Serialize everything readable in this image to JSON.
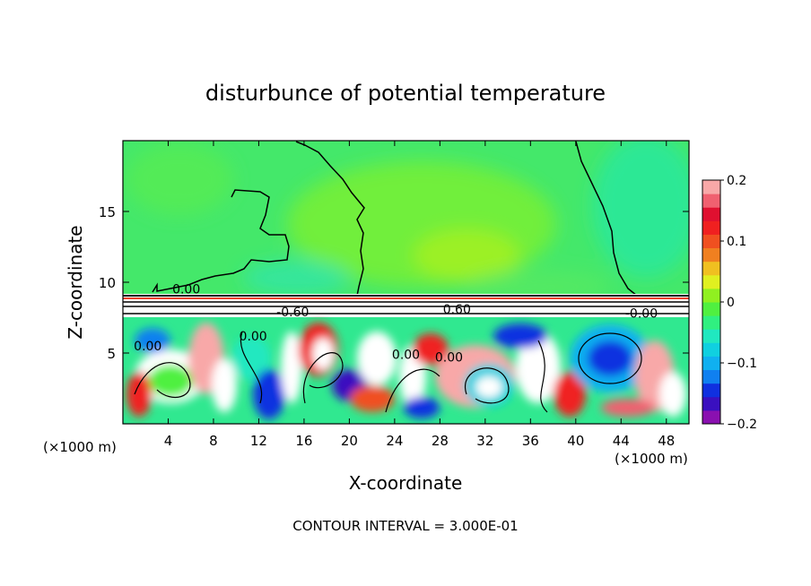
{
  "chart_data": {
    "type": "heatmap",
    "title": "disturbunce of potential temperature",
    "xlabel": "X-coordinate",
    "ylabel": "Z-coordinate",
    "x_unit_label_left": "(×1000 m)",
    "x_unit_label_right": "(×1000 m)",
    "xlim": [
      0,
      50
    ],
    "ylim": [
      0,
      20
    ],
    "x_ticks": [
      4,
      8,
      12,
      16,
      20,
      24,
      28,
      32,
      36,
      40,
      44,
      48
    ],
    "y_ticks": [
      5,
      10,
      15
    ],
    "colorbar": {
      "range": [
        -0.2,
        0.2
      ],
      "tick_values": [
        0.2,
        0.1,
        0,
        -0.1,
        -0.2
      ],
      "tick_labels": [
        "0.2",
        "0.1",
        "0",
        "−0.1",
        "−0.2"
      ],
      "colors": [
        "#8a10b0",
        "#3a10c0",
        "#1030e0",
        "#1080f0",
        "#10b0f0",
        "#10d0e0",
        "#20e8c0",
        "#30f080",
        "#50f040",
        "#90f020",
        "#e0f020",
        "#f0c020",
        "#f08020",
        "#f05020",
        "#f02020",
        "#e01030",
        "#f06070",
        "#f8a8a8"
      ]
    },
    "contour_labels": [
      {
        "text": "0.00",
        "x": 5.6,
        "z": 9.2
      },
      {
        "text": "-0.60",
        "x": 15.0,
        "z": 7.6
      },
      {
        "text": "0.60",
        "x": 29.5,
        "z": 7.8
      },
      {
        "text": "-0.00",
        "x": 45.8,
        "z": 7.5
      },
      {
        "text": "0.00",
        "x": 2.2,
        "z": 5.2
      },
      {
        "text": "0.00",
        "x": 11.5,
        "z": 5.9
      },
      {
        "text": "0.00",
        "x": 25.0,
        "z": 4.6
      },
      {
        "text": "0.00",
        "x": 28.8,
        "z": 4.4
      }
    ],
    "footnote": "CONTOUR INTERVAL = 3.000E-01"
  }
}
